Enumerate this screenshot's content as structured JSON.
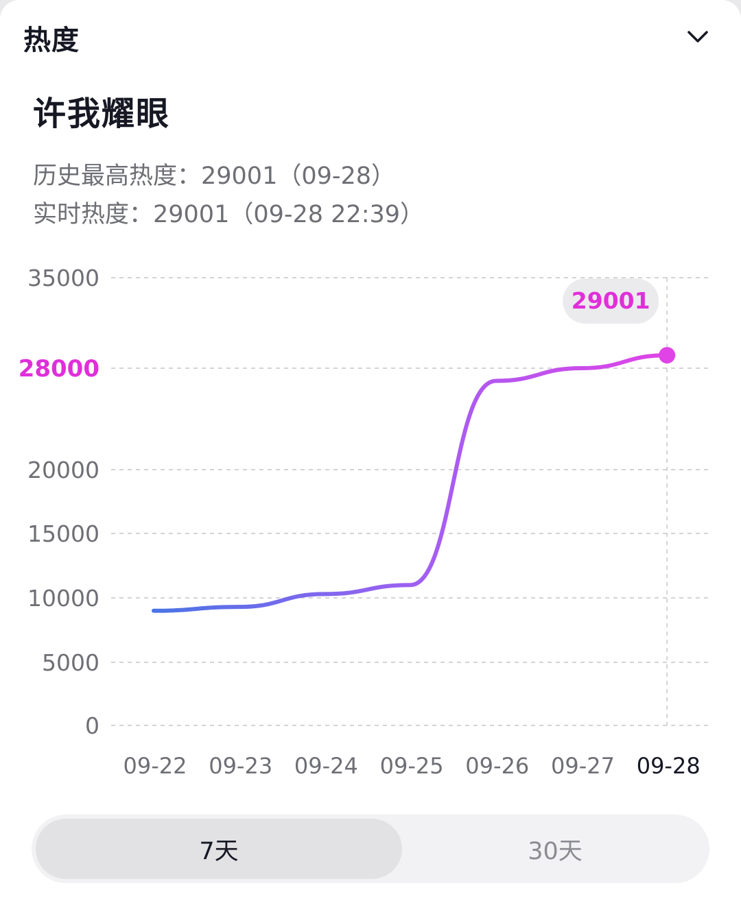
{
  "header": {
    "title": "热度",
    "collapse_icon": "chevron-down-icon"
  },
  "topic": {
    "title": "许我耀眼"
  },
  "stats": {
    "peak": "历史最高热度：29001（09-28）",
    "live": "实时热度：29001（09-28 22:39）"
  },
  "chart_data": {
    "type": "line",
    "x": [
      "09-22",
      "09-23",
      "09-24",
      "09-25",
      "09-26",
      "09-27",
      "09-28"
    ],
    "series": [
      {
        "values": [
          9000,
          9300,
          10300,
          11000,
          27000,
          28000,
          29001
        ]
      }
    ],
    "ylim": [
      0,
      35000
    ],
    "yticks": [
      "35000",
      "28000",
      "20000",
      "15000",
      "10000",
      "5000",
      "0"
    ],
    "highlight_tick": "28000",
    "tooltip": "29001",
    "grid": true,
    "colors": {
      "line_start": "#4a74e6",
      "line_mid": "#a55ef2",
      "line_end": "#e043e6",
      "highlight": "#e02fd9",
      "grid": "#d3d3d8",
      "tick": "#6e6f75",
      "active_tick": "#161823"
    }
  },
  "range_toggle": {
    "options": [
      "7天",
      "30天"
    ],
    "selected": "7天"
  }
}
